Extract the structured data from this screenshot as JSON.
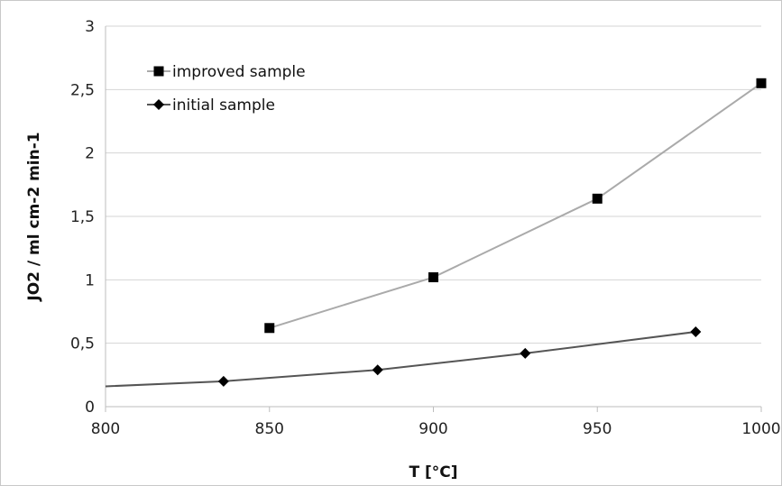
{
  "chart_data": {
    "type": "line",
    "title": "",
    "xlabel": "T [°C]",
    "ylabel": "JO2 / ml cm-2 min-1",
    "xlim": [
      800,
      1000
    ],
    "ylim": [
      0,
      3
    ],
    "x_ticks": [
      800,
      850,
      900,
      950,
      1000
    ],
    "y_ticks": [
      0,
      0.5,
      1,
      1.5,
      2,
      2.5,
      3
    ],
    "y_tick_labels": [
      "0",
      "0,5",
      "1",
      "1,5",
      "2",
      "2,5",
      "3"
    ],
    "grid": true,
    "legend_position": "top-left",
    "series": [
      {
        "name": "improved sample",
        "marker": "square",
        "line_color": "#aaaaaa",
        "marker_color": "#000000",
        "x": [
          850,
          900,
          950,
          1000
        ],
        "y": [
          0.62,
          1.02,
          1.64,
          2.55
        ]
      },
      {
        "name": "initial sample",
        "marker": "diamond",
        "line_color": "#555555",
        "marker_color": "#000000",
        "line_extends_to_x": 800,
        "line_start_y": 0.16,
        "x": [
          836,
          883,
          928,
          980
        ],
        "y": [
          0.2,
          0.29,
          0.42,
          0.59
        ]
      }
    ]
  }
}
